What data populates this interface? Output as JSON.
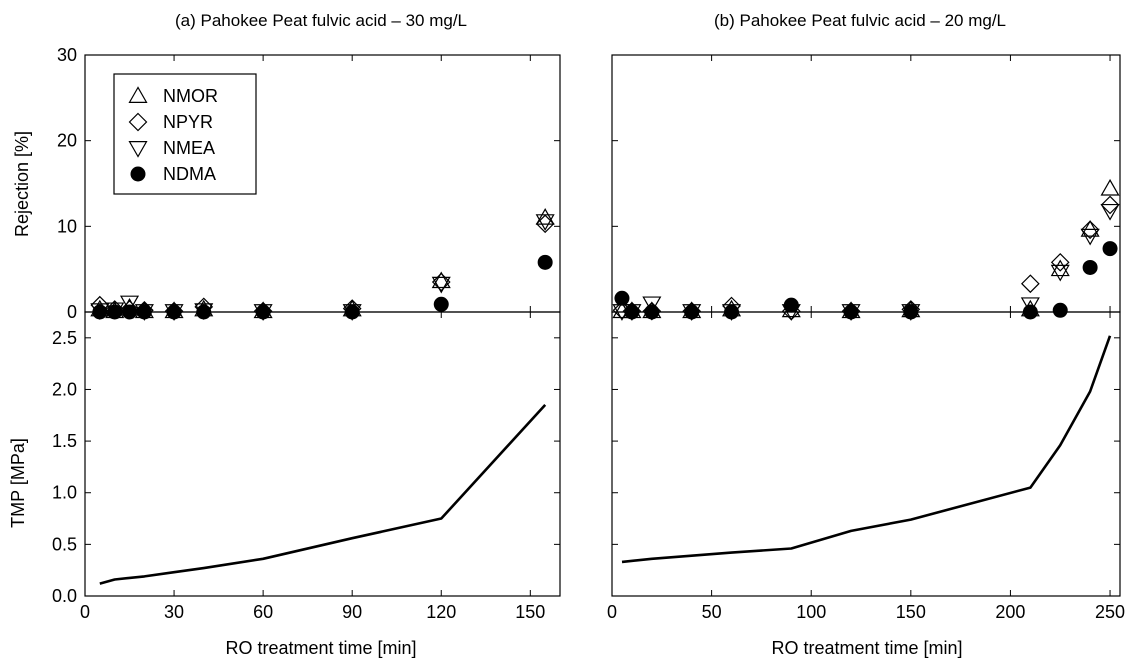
{
  "chart_data": [
    {
      "type": "scatter",
      "panel": "a",
      "title": "(a) Pahokee Peat fulvic acid – 30 mg/L",
      "xlabel": "RO treatment time [min]",
      "ylabel": "Rejection [%]",
      "xlim": [
        0,
        160
      ],
      "ylim": [
        0,
        30
      ],
      "xticks": [
        0,
        30,
        60,
        90,
        120,
        150
      ],
      "yticks": [
        0,
        10,
        20,
        30
      ],
      "legend_position": "top-left",
      "series": [
        {
          "name": "NMOR",
          "marker": "triangle-up",
          "x": [
            5,
            10,
            15,
            20,
            30,
            40,
            60,
            90,
            120,
            155
          ],
          "y": [
            0.3,
            0.1,
            0.5,
            0.1,
            0.1,
            0.3,
            0.1,
            0.3,
            3.6,
            11.0
          ]
        },
        {
          "name": "NPYR",
          "marker": "diamond",
          "x": [
            5,
            10,
            15,
            20,
            30,
            40,
            60,
            90,
            120,
            155
          ],
          "y": [
            0.8,
            0.3,
            0.3,
            0.2,
            0.1,
            0.6,
            0.1,
            0.4,
            3.5,
            10.3
          ]
        },
        {
          "name": "NMEA",
          "marker": "triangle-down",
          "x": [
            5,
            10,
            15,
            20,
            30,
            40,
            60,
            90,
            120,
            155
          ],
          "y": [
            0.2,
            0.3,
            1.1,
            0.1,
            0.1,
            0.2,
            0.1,
            0.1,
            3.3,
            10.6
          ]
        },
        {
          "name": "NDMA",
          "marker": "filled-circle",
          "x": [
            5,
            10,
            15,
            20,
            30,
            40,
            60,
            90,
            120,
            155
          ],
          "y": [
            0.0,
            0.0,
            0.0,
            0.0,
            0.0,
            0.0,
            0.0,
            0.0,
            0.9,
            5.8
          ]
        }
      ]
    },
    {
      "type": "scatter",
      "panel": "b",
      "title": "(b) Pahokee Peat fulvic acid – 20 mg/L",
      "xlabel": "RO treatment time [min]",
      "ylabel": "",
      "xlim": [
        0,
        255
      ],
      "ylim": [
        0,
        30
      ],
      "xticks": [
        0,
        50,
        100,
        150,
        200,
        250
      ],
      "yticks": [
        0,
        10,
        20,
        30
      ],
      "series": [
        {
          "name": "NMOR",
          "marker": "triangle-up",
          "x": [
            5,
            10,
            20,
            40,
            60,
            90,
            120,
            150,
            210,
            225,
            240,
            250
          ],
          "y": [
            0.1,
            0.1,
            0.1,
            0.1,
            0.3,
            0.2,
            0.1,
            0.2,
            0.3,
            5.0,
            9.6,
            14.4
          ]
        },
        {
          "name": "NPYR",
          "marker": "diamond",
          "x": [
            5,
            10,
            20,
            40,
            60,
            90,
            120,
            150,
            210,
            225,
            240,
            250
          ],
          "y": [
            0.2,
            0.1,
            0.1,
            0.1,
            0.7,
            0.1,
            0.1,
            0.3,
            3.3,
            5.8,
            9.6,
            12.5
          ]
        },
        {
          "name": "NMEA",
          "marker": "triangle-down",
          "x": [
            5,
            10,
            20,
            40,
            60,
            90,
            120,
            150,
            210,
            225,
            240,
            250
          ],
          "y": [
            0.1,
            0.1,
            1.0,
            0.1,
            0.1,
            0.1,
            0.1,
            0.1,
            0.9,
            4.7,
            8.9,
            11.8
          ]
        },
        {
          "name": "NDMA",
          "marker": "filled-circle",
          "x": [
            5,
            10,
            20,
            40,
            60,
            90,
            120,
            150,
            210,
            225,
            240,
            250
          ],
          "y": [
            1.6,
            0.0,
            0.0,
            0.0,
            0.0,
            0.8,
            0.0,
            0.0,
            0.0,
            0.2,
            5.2,
            7.4
          ]
        }
      ]
    },
    {
      "type": "line",
      "panel": "a-bottom",
      "xlabel": "RO treatment time [min]",
      "ylabel": "TMP [MPa]",
      "xlim": [
        0,
        160
      ],
      "ylim": [
        0,
        2.75
      ],
      "xticks": [
        0,
        30,
        60,
        90,
        120,
        150
      ],
      "yticks": [
        0.0,
        0.5,
        1.0,
        1.5,
        2.0,
        2.5
      ],
      "series": [
        {
          "x": [
            5,
            10,
            20,
            30,
            40,
            60,
            90,
            120,
            155
          ],
          "y": [
            0.12,
            0.16,
            0.19,
            0.23,
            0.27,
            0.36,
            0.56,
            0.75,
            1.85
          ]
        }
      ]
    },
    {
      "type": "line",
      "panel": "b-bottom",
      "xlabel": "RO treatment time [min]",
      "ylabel": "",
      "xlim": [
        0,
        255
      ],
      "ylim": [
        0,
        2.75
      ],
      "xticks": [
        0,
        50,
        100,
        150,
        200,
        250
      ],
      "yticks": [
        0.0,
        0.5,
        1.0,
        1.5,
        2.0,
        2.5
      ],
      "series": [
        {
          "x": [
            5,
            20,
            40,
            60,
            90,
            120,
            150,
            210,
            225,
            240,
            250
          ],
          "y": [
            0.33,
            0.36,
            0.39,
            0.42,
            0.46,
            0.63,
            0.74,
            1.05,
            1.46,
            1.98,
            2.52
          ]
        }
      ]
    }
  ]
}
